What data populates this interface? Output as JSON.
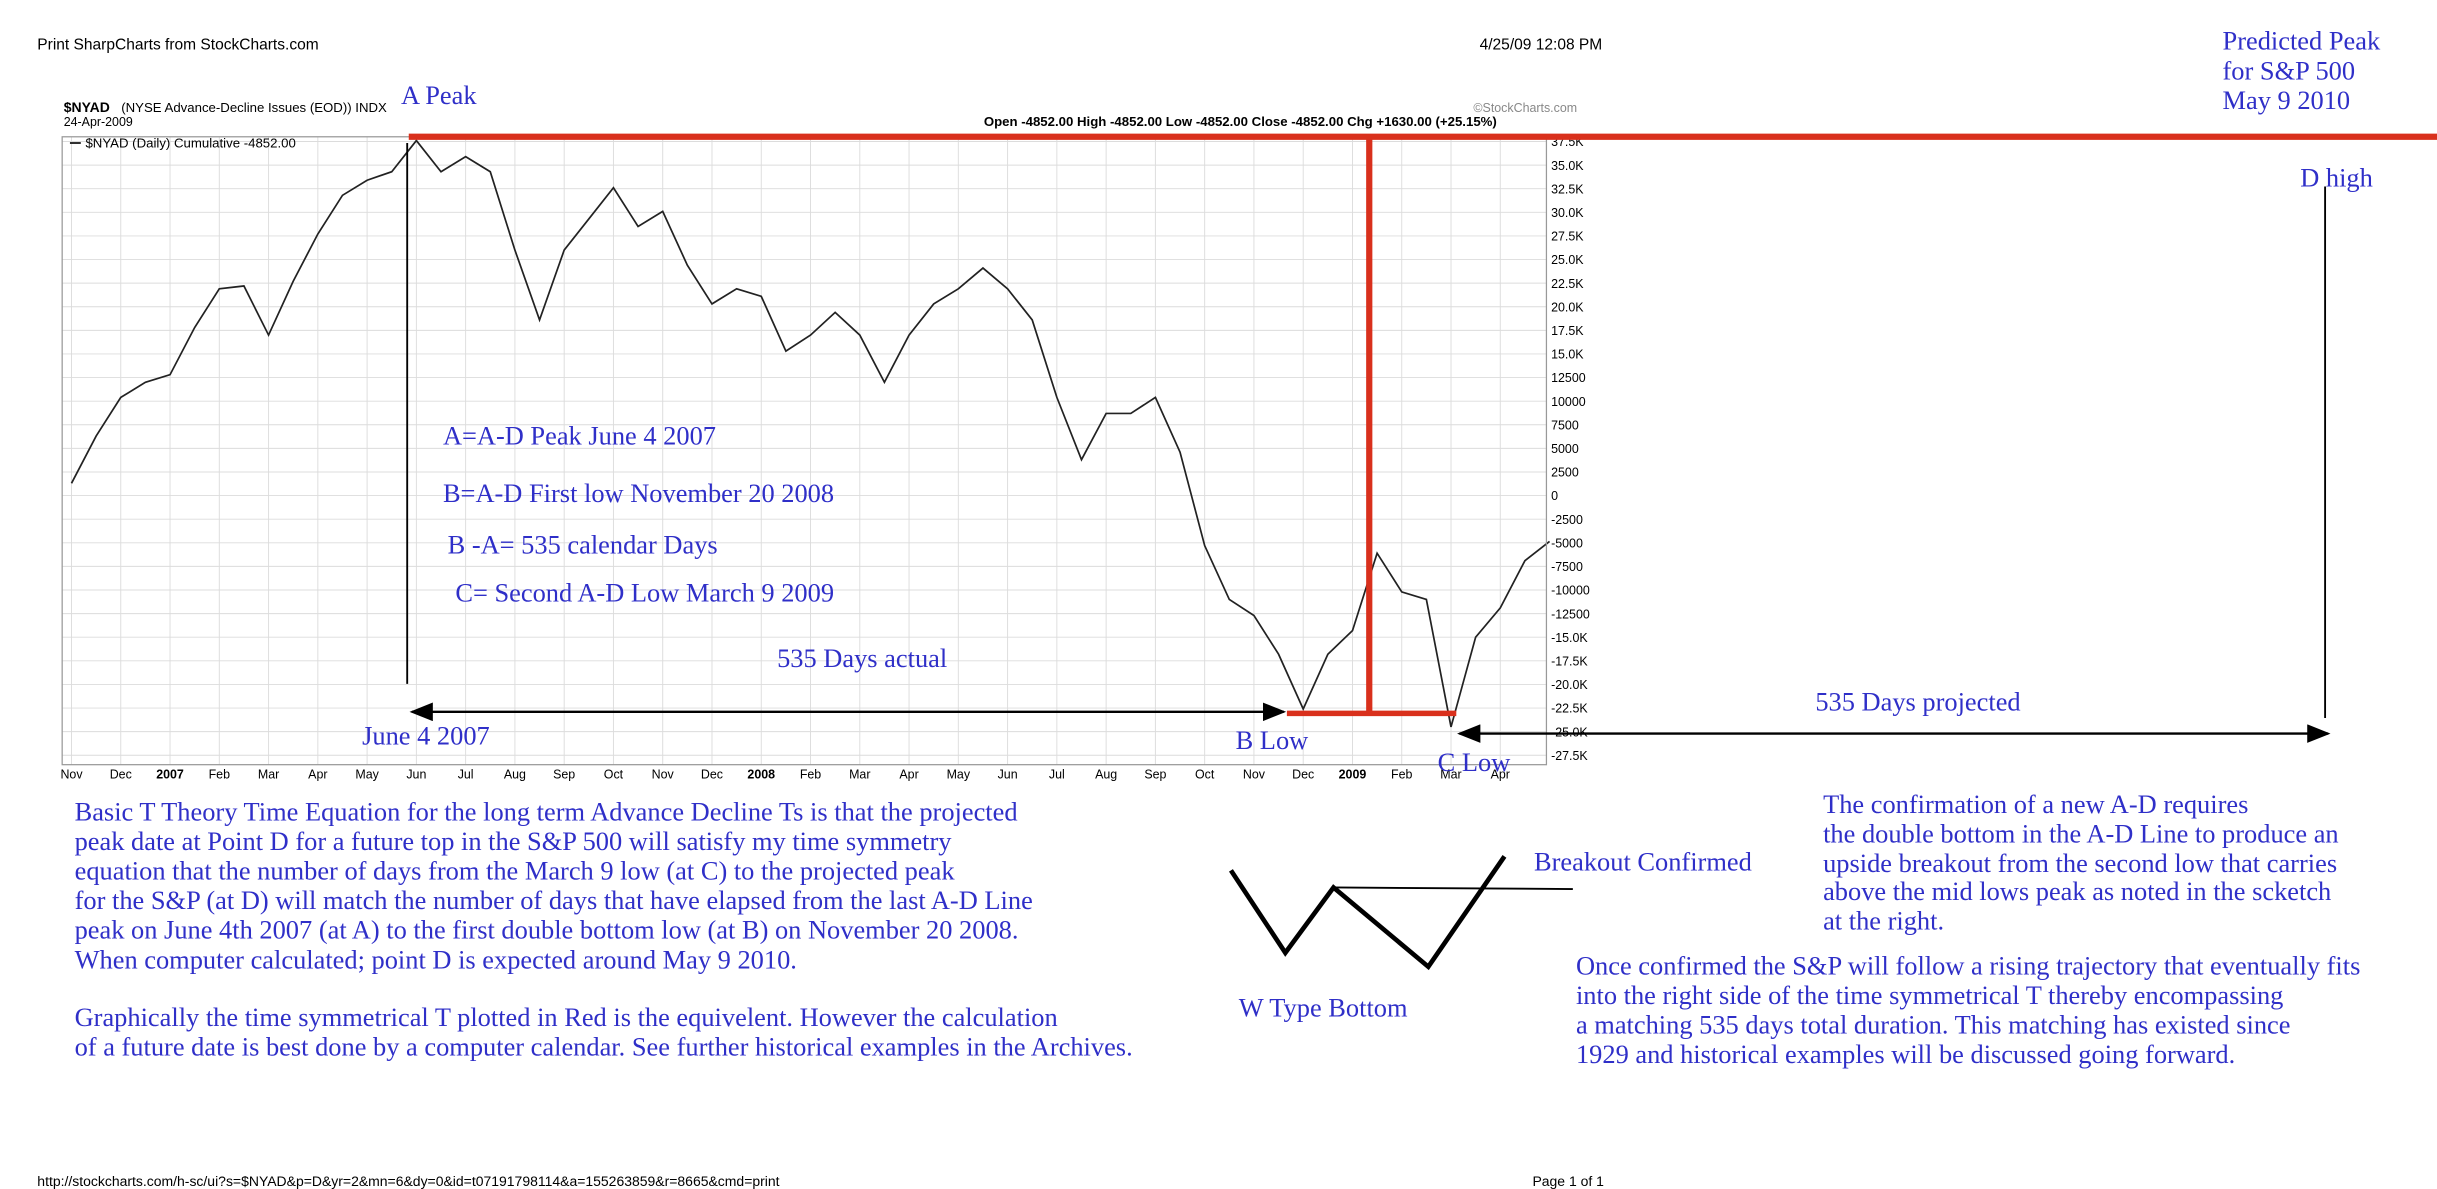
{
  "header": {
    "left": "Print SharpCharts from StockCharts.com",
    "date": "4/25/09 12:08 PM",
    "prediction": [
      "Predicted Peak",
      "for S&P 500",
      "May 9 2010"
    ]
  },
  "chart_data": {
    "type": "line",
    "symbol": "$NYAD",
    "title": "(NYSE Advance-Decline Issues (EOD)) INDX",
    "subtitle": "24-Apr-2009",
    "copyright": "©StockCharts.com",
    "quote": "Open -4852.00  High -4852.00  Low -4852.00  Close -4852.00  Chg +1630.00 (+25.15%)",
    "categories": [
      "Nov",
      null,
      "Dec",
      null,
      "2007",
      null,
      "Feb",
      null,
      "Mar",
      null,
      "Apr",
      null,
      "May",
      null,
      "Jun",
      null,
      "Jul",
      null,
      "Aug",
      null,
      "Sep",
      null,
      "Oct",
      null,
      "Nov",
      null,
      "Dec",
      null,
      "2008",
      null,
      "Feb",
      null,
      "Mar",
      null,
      "Apr",
      null,
      "May",
      null,
      "Jun",
      null,
      "Jul",
      null,
      "Aug",
      null,
      "Sep",
      null,
      "Oct",
      null,
      "Nov",
      null,
      "Dec",
      null,
      "2009",
      null,
      "Feb",
      null,
      "Mar",
      null,
      "Apr",
      null,
      null
    ],
    "series": [
      {
        "name": "$NYAD (Daily) Cumulative -4852.00",
        "color": "#222222",
        "values": [
          1300,
          6300,
          10400,
          12000,
          12800,
          17800,
          21900,
          22200,
          17000,
          22700,
          27700,
          31800,
          33400,
          34300,
          37600,
          34300,
          35900,
          34300,
          26000,
          18600,
          26000,
          29300,
          32600,
          28500,
          30100,
          24400,
          20300,
          21900,
          21100,
          15300,
          17000,
          19400,
          17000,
          12000,
          17000,
          20300,
          21900,
          24100,
          21900,
          18600,
          10400,
          3800,
          8700,
          8700,
          10400,
          4600,
          -5300,
          -11000,
          -12700,
          -16800,
          -22600,
          -16800,
          -14300,
          -6100,
          -10200,
          -11000,
          -24500,
          -15000,
          -11900,
          -6900,
          -4852
        ]
      }
    ],
    "ylim": [
      -28500,
      38000
    ],
    "yticks": [
      {
        "value": 37500,
        "label": "37.5K"
      },
      {
        "value": 35000,
        "label": "35.0K"
      },
      {
        "value": 32500,
        "label": "32.5K"
      },
      {
        "value": 30000,
        "label": "30.0K"
      },
      {
        "value": 27500,
        "label": "27.5K"
      },
      {
        "value": 25000,
        "label": "25.0K"
      },
      {
        "value": 22500,
        "label": "22.5K"
      },
      {
        "value": 20000,
        "label": "20.0K"
      },
      {
        "value": 17500,
        "label": "17.5K"
      },
      {
        "value": 15000,
        "label": "15.0K"
      },
      12500,
      10000,
      7500,
      5000,
      2500,
      0,
      -2500,
      -5000,
      -7500,
      -10000,
      -12500,
      {
        "value": -15000,
        "label": "-15.0K"
      },
      {
        "value": -17500,
        "label": "-17.5K"
      },
      {
        "value": -20000,
        "label": "-20.0K"
      },
      {
        "value": -22500,
        "label": "-22.5K"
      },
      {
        "value": -25000,
        "label": "-25.0K"
      },
      {
        "value": -27500,
        "label": "-27.5K"
      }
    ],
    "grid": true,
    "annotations": {
      "a_peak": "A Peak",
      "d_high": "D high",
      "b_low": "B Low",
      "c_low": "C Low",
      "june": "June 4 2007",
      "actual": "535 Days actual",
      "projected": "535 Days projected",
      "notes": [
        "A=A-D Peak June 4 2007",
        "B=A-D First low November 20 2008",
        "B -A= 535 calendar Days",
        "C= Second A-D Low March 9 2009"
      ]
    }
  },
  "notes": {
    "left": [
      "Basic T Theory Time Equation for the long term Advance Decline Ts is that the projected",
      "peak date  at Point D for a future top in the S&P 500 will satisfy my time symmetry",
      "equation that the number of days  from the March 9 low (at C) to the projected peak",
      "for the S&P (at D) will match the number of days that have elapsed from the last A-D Line",
      "peak on June 4th 2007 (at A) to the first double bottom low (at B) on November 20 2008.",
      "When computer calculated; point D is expected around May 9  2010."
    ],
    "left2": [
      "Graphically the time symmetrical T plotted in Red is the equivelent. However the calculation",
      "of a future date is best done by a computer calendar. See further historical examples in the Archives."
    ],
    "breakout": "Breakout Confirmed",
    "w_bottom": "W Type Bottom",
    "right1": [
      "The confirmation of a new A-D requires",
      "the double bottom in the A-D Line to produce an",
      "upside breakout from the second low that carries",
      "above the mid lows peak as noted in the scketch",
      "at the right."
    ],
    "right2": [
      "Once confirmed the S&P will follow a rising trajectory that eventually fits",
      "into the right side of the time symmetrical T thereby encompassing",
      "a matching  535 days total duration. This matching has existed since",
      "1929 and historical examples will be discussed going forward."
    ]
  },
  "footer": {
    "url": "http://stockcharts.com/h-sc/ui?s=$NYAD&p=D&yr=2&mn=6&dy=0&id=t07191798114&a=155263859&r=8665&cmd=print",
    "page": "Page 1 of 1"
  }
}
